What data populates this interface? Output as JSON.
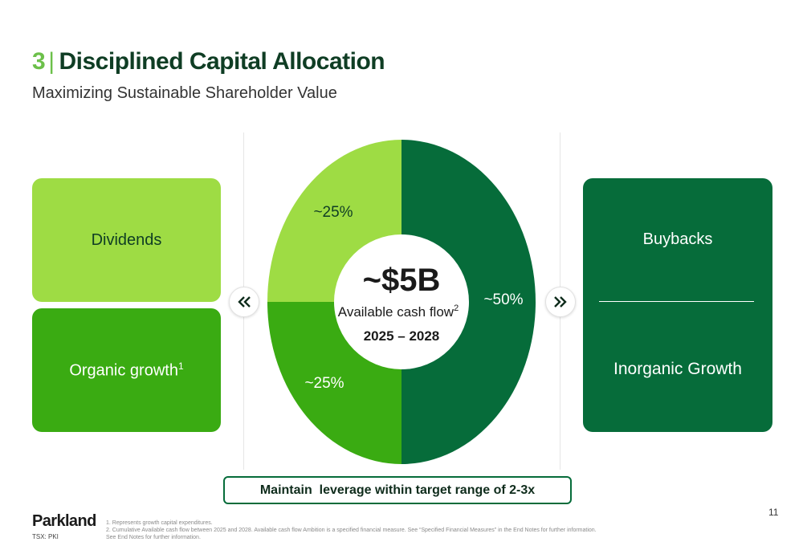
{
  "header": {
    "number": "3",
    "divider": "|",
    "title": "Disciplined Capital Allocation",
    "subtitle": "Maximizing Sustainable Shareholder Value"
  },
  "left_boxes": {
    "dividends": "Dividends",
    "organic": "Organic growth",
    "organic_sup": "1"
  },
  "right_box": {
    "buybacks": "Buybacks",
    "inorganic": "Inorganic Growth"
  },
  "center": {
    "amount": "~$5B",
    "label": "Available cash flow",
    "label_sup": "2",
    "years": "2025 – 2028"
  },
  "chart_data": {
    "type": "pie",
    "slices": [
      {
        "label": "~25%",
        "value": 25,
        "color": "#9edc44"
      },
      {
        "label": "~50%",
        "value": 50,
        "color": "#066c3a"
      },
      {
        "label": "~25%",
        "value": 25,
        "color": "#3aab12"
      }
    ],
    "center_text": "~$5B"
  },
  "leverage_note": "Maintain  leverage within target range of 2-3x",
  "footer": {
    "logo": "Parkland",
    "ticker": "TSX: PKI",
    "note1": "1. Represents growth capital expenditures.",
    "note2": "2. Cumulative Available cash flow between 2025 and 2028. Available cash flow Ambition is a specified financial measure. See “Specified Financial Measures” in the End Notes for further information.",
    "note3": "See End Notes for further information.",
    "page": "11"
  },
  "icons": {
    "left_arrow": "double-chevron-left-icon",
    "right_arrow": "double-chevron-right-icon"
  },
  "colors": {
    "light_green": "#9edc44",
    "mid_green": "#3aab12",
    "dark_green": "#066c3a",
    "accent": "#6cc04a"
  }
}
